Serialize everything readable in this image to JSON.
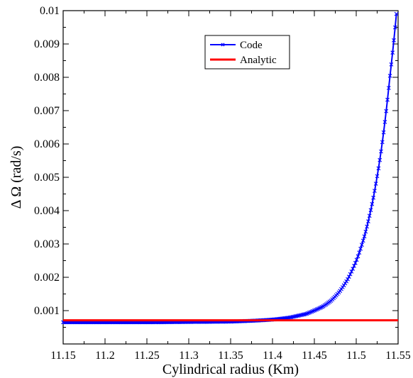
{
  "chart_data": {
    "type": "line",
    "title": "",
    "xlabel": "Cylindrical radius (Km)",
    "ylabel": "Δ Ω  (rad/s)",
    "xlim": [
      11.15,
      11.55
    ],
    "ylim": [
      0.0,
      0.01
    ],
    "x_ticks": [
      "11.15",
      "11.2",
      "11.25",
      "11.3",
      "11.35",
      "11.4",
      "11.45",
      "11.5",
      "11.55"
    ],
    "y_ticks": [
      "0.001",
      "0.002",
      "0.003",
      "0.004",
      "0.005",
      "0.006",
      "0.007",
      "0.008",
      "0.009",
      "0.01"
    ],
    "grid": false,
    "legend_position": "top-right",
    "series": [
      {
        "name": "Code",
        "color": "#0000ff",
        "marker": "x",
        "x": [
          11.15,
          11.2,
          11.25,
          11.3,
          11.35,
          11.38,
          11.4,
          11.42,
          11.44,
          11.46,
          11.47,
          11.48,
          11.49,
          11.5,
          11.51,
          11.52,
          11.53,
          11.54,
          11.548
        ],
        "y": [
          0.00065,
          0.00065,
          0.00065,
          0.00066,
          0.00067,
          0.0007,
          0.00073,
          0.00079,
          0.0009,
          0.00112,
          0.0013,
          0.00157,
          0.00195,
          0.00249,
          0.00325,
          0.00433,
          0.00584,
          0.00797,
          0.0099
        ]
      },
      {
        "name": "Analytic",
        "color": "#ff0000",
        "marker": "none",
        "x": [
          11.15,
          11.55
        ],
        "y": [
          0.00071,
          0.00071
        ]
      }
    ]
  }
}
